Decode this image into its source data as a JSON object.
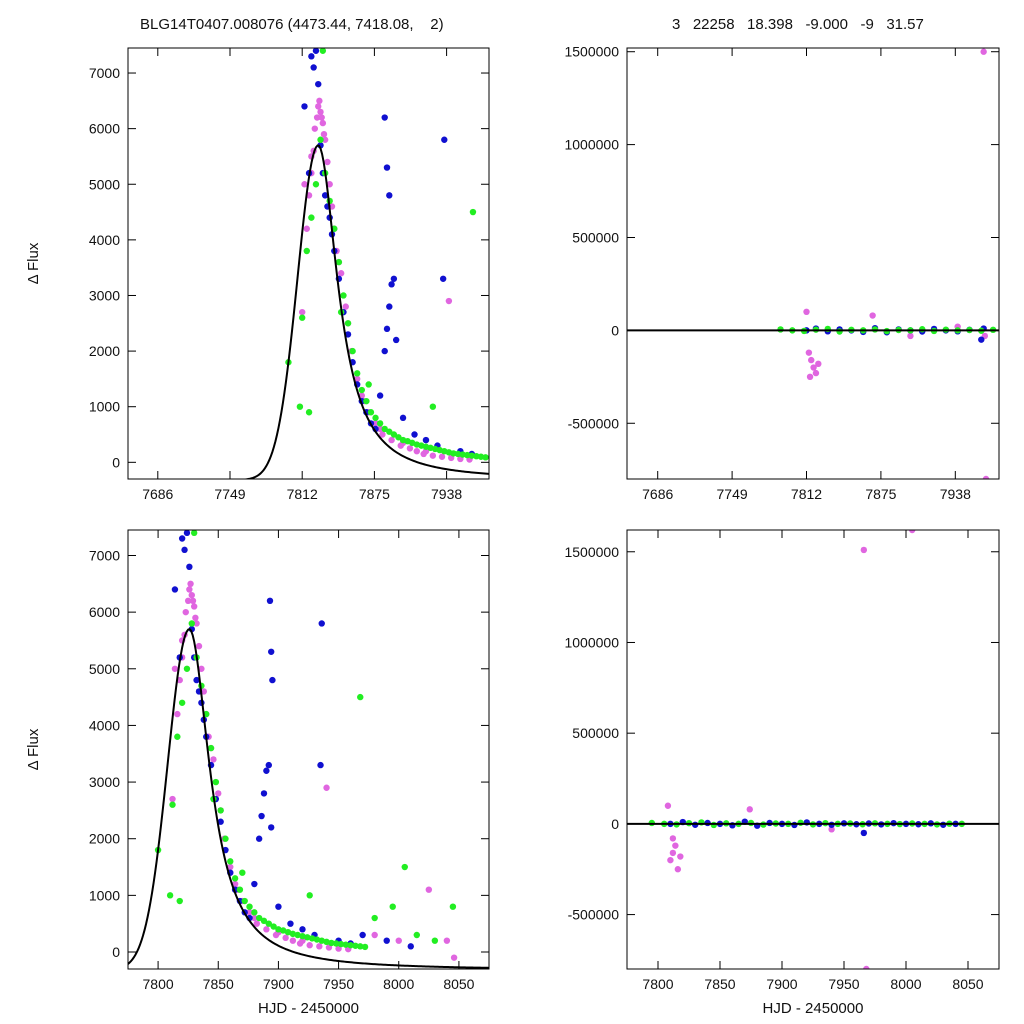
{
  "header": {
    "left_title": "BLG14T0407.008076 (4473.44, 7418.08,    2)",
    "right_title": "3   22258   18.398   -9.000   -9   31.57"
  },
  "colors": {
    "series_magenta": "#e066e0",
    "series_blue": "#1010d0",
    "series_green": "#22ee22",
    "model_line": "#000000",
    "axis": "#000000"
  },
  "chart_data": [
    {
      "id": "top-left",
      "type": "scatter",
      "xlabel": "",
      "ylabel": "Δ Flux",
      "xlim": [
        7660,
        7975
      ],
      "ylim": [
        -300,
        7450
      ],
      "xticks": [
        7686,
        7749,
        7812,
        7875,
        7938
      ],
      "yticks": [
        0,
        1000,
        2000,
        3000,
        4000,
        5000,
        6000,
        7000
      ],
      "model": {
        "type": "line",
        "t0": 7826,
        "peak": 5700,
        "tau_rise": 18,
        "tau_fall": 26,
        "baseline": -320
      },
      "series": [
        {
          "color_key": "series_magenta",
          "x": [
            7812,
            7816,
            7818,
            7820,
            7822,
            7823,
            7825,
            7826,
            7828,
            7830,
            7832,
            7834,
            7836,
            7838,
            7842,
            7846,
            7850,
            7855,
            7860,
            7864,
            7870,
            7876,
            7882,
            7890,
            7898,
            7906,
            7912,
            7918,
            7926,
            7934,
            7942,
            7950,
            7958,
            7814,
            7820,
            7827,
            7829,
            7831,
            7840,
            7844,
            7852,
            7866,
            7880,
            7900,
            7920,
            7940
          ],
          "y": [
            2700,
            4200,
            4800,
            5200,
            5600,
            6000,
            6200,
            6400,
            6300,
            6100,
            5800,
            5400,
            5000,
            4600,
            3800,
            3400,
            2800,
            2000,
            1500,
            1200,
            900,
            700,
            500,
            400,
            300,
            250,
            200,
            150,
            120,
            100,
            80,
            60,
            50,
            5000,
            5500,
            6500,
            6200,
            5900,
            4200,
            3600,
            2500,
            1100,
            600,
            350,
            200,
            2900
          ]
        },
        {
          "color_key": "series_blue",
          "x": [
            7814,
            7818,
            7820,
            7822,
            7824,
            7826,
            7828,
            7830,
            7832,
            7834,
            7836,
            7838,
            7840,
            7844,
            7848,
            7852,
            7856,
            7860,
            7864,
            7868,
            7872,
            7876,
            7880,
            7884,
            7886,
            7888,
            7890,
            7892,
            7894,
            7900,
            7910,
            7920,
            7930,
            7935,
            7936,
            7950,
            7960,
            7884,
            7886,
            7888
          ],
          "y": [
            6400,
            5200,
            7300,
            7100,
            7400,
            6800,
            5700,
            5200,
            4800,
            4600,
            4400,
            4100,
            3800,
            3300,
            2700,
            2300,
            1800,
            1400,
            1100,
            900,
            700,
            600,
            1200,
            2000,
            2400,
            2800,
            3200,
            3300,
            2200,
            800,
            500,
            400,
            300,
            3300,
            5800,
            200,
            150,
            6200,
            5300,
            4800
          ]
        },
        {
          "color_key": "series_green",
          "x": [
            7810,
            7812,
            7816,
            7820,
            7824,
            7828,
            7832,
            7836,
            7840,
            7844,
            7848,
            7852,
            7856,
            7860,
            7864,
            7868,
            7872,
            7876,
            7880,
            7884,
            7888,
            7892,
            7896,
            7900,
            7904,
            7908,
            7912,
            7916,
            7920,
            7924,
            7928,
            7932,
            7936,
            7940,
            7944,
            7948,
            7952,
            7956,
            7960,
            7964,
            7968,
            7972,
            7800,
            7818,
            7830,
            7846,
            7870,
            7926,
            7961
          ],
          "y": [
            1000,
            2600,
            3800,
            4400,
            5000,
            5800,
            5200,
            4700,
            4200,
            3600,
            3000,
            2500,
            2000,
            1600,
            1300,
            1100,
            900,
            800,
            700,
            600,
            550,
            500,
            450,
            400,
            380,
            350,
            320,
            300,
            280,
            260,
            240,
            220,
            200,
            180,
            160,
            150,
            140,
            130,
            120,
            110,
            100,
            90,
            1800,
            900,
            7400,
            2700,
            1400,
            1000,
            4500
          ]
        }
      ]
    },
    {
      "id": "top-right",
      "type": "scatter",
      "xlabel": "",
      "ylabel": "",
      "xlim": [
        7660,
        7975
      ],
      "ylim": [
        -800000,
        1520000
      ],
      "xticks": [
        7686,
        7749,
        7812,
        7875,
        7938
      ],
      "yticks": [
        -500000,
        0,
        500000,
        1000000,
        1500000
      ],
      "model": {
        "type": "flat",
        "value": 0
      },
      "series": [
        {
          "color_key": "series_magenta",
          "x": [
            7812,
            7814,
            7816,
            7818,
            7820,
            7822,
            7815,
            7868,
            7900,
            7940,
            7962,
            7964,
            7963
          ],
          "y": [
            100000,
            -120000,
            -160000,
            -200000,
            -230000,
            -180000,
            -250000,
            80000,
            -30000,
            20000,
            1500000,
            -800000,
            -30000
          ]
        },
        {
          "color_key": "series_blue",
          "x": [
            7812,
            7820,
            7830,
            7840,
            7850,
            7860,
            7870,
            7880,
            7890,
            7900,
            7910,
            7920,
            7930,
            7940,
            7950,
            7960,
            7962
          ],
          "y": [
            0,
            10000,
            -5000,
            5000,
            0,
            -8000,
            12000,
            -10000,
            5000,
            0,
            -6000,
            8000,
            0,
            -5000,
            3000,
            -50000,
            10000
          ]
        },
        {
          "color_key": "series_green",
          "x": [
            7790,
            7800,
            7810,
            7820,
            7830,
            7840,
            7850,
            7860,
            7870,
            7880,
            7890,
            7900,
            7910,
            7920,
            7930,
            7940,
            7950,
            7960,
            7970
          ],
          "y": [
            5000,
            0,
            -3000,
            4000,
            8000,
            -6000,
            3000,
            0,
            5000,
            -4000,
            2000,
            0,
            6000,
            -3000,
            4000,
            0,
            2000,
            -2000,
            3000
          ]
        }
      ]
    },
    {
      "id": "bottom-left",
      "type": "scatter",
      "xlabel": "HJD - 2450000",
      "ylabel": "Δ Flux",
      "xlim": [
        7775,
        8075
      ],
      "ylim": [
        -300,
        7450
      ],
      "xticks": [
        7800,
        7850,
        7900,
        7950,
        8000,
        8050
      ],
      "yticks": [
        0,
        1000,
        2000,
        3000,
        4000,
        5000,
        6000,
        7000
      ],
      "model": {
        "type": "line",
        "t0": 7826,
        "peak": 5700,
        "tau_rise": 18,
        "tau_fall": 26,
        "baseline": -320
      },
      "series": [
        {
          "color_key": "series_magenta",
          "x": [
            7812,
            7816,
            7818,
            7820,
            7822,
            7823,
            7825,
            7826,
            7828,
            7830,
            7832,
            7834,
            7836,
            7838,
            7842,
            7846,
            7850,
            7855,
            7860,
            7864,
            7870,
            7876,
            7882,
            7890,
            7898,
            7906,
            7912,
            7918,
            7926,
            7934,
            7942,
            7950,
            7958,
            7814,
            7820,
            7827,
            7829,
            7831,
            7840,
            7844,
            7852,
            7866,
            7880,
            7900,
            7920,
            7940,
            7980,
            8000,
            8025,
            8040,
            8046
          ],
          "y": [
            2700,
            4200,
            4800,
            5200,
            5600,
            6000,
            6200,
            6400,
            6300,
            6100,
            5800,
            5400,
            5000,
            4600,
            3800,
            3400,
            2800,
            2000,
            1500,
            1200,
            900,
            700,
            500,
            400,
            300,
            250,
            200,
            150,
            120,
            100,
            80,
            60,
            50,
            5000,
            5500,
            6500,
            6200,
            5900,
            4200,
            3600,
            2500,
            1100,
            600,
            350,
            200,
            2900,
            300,
            200,
            1100,
            200,
            -100
          ]
        },
        {
          "color_key": "series_blue",
          "x": [
            7814,
            7818,
            7820,
            7822,
            7824,
            7826,
            7828,
            7830,
            7832,
            7834,
            7836,
            7838,
            7840,
            7844,
            7848,
            7852,
            7856,
            7860,
            7864,
            7868,
            7872,
            7876,
            7880,
            7884,
            7886,
            7888,
            7890,
            7892,
            7894,
            7900,
            7910,
            7920,
            7930,
            7935,
            7936,
            7950,
            7960,
            7893,
            7894,
            7895,
            7970,
            7990,
            8010
          ],
          "y": [
            6400,
            5200,
            7300,
            7100,
            7400,
            6800,
            5700,
            5200,
            4800,
            4600,
            4400,
            4100,
            3800,
            3300,
            2700,
            2300,
            1800,
            1400,
            1100,
            900,
            700,
            600,
            1200,
            2000,
            2400,
            2800,
            3200,
            3300,
            2200,
            800,
            500,
            400,
            300,
            3300,
            5800,
            200,
            150,
            6200,
            5300,
            4800,
            300,
            200,
            100
          ]
        },
        {
          "color_key": "series_green",
          "x": [
            7810,
            7812,
            7816,
            7820,
            7824,
            7828,
            7832,
            7836,
            7840,
            7844,
            7848,
            7852,
            7856,
            7860,
            7864,
            7868,
            7872,
            7876,
            7880,
            7884,
            7888,
            7892,
            7896,
            7900,
            7904,
            7908,
            7912,
            7916,
            7920,
            7924,
            7928,
            7932,
            7936,
            7940,
            7944,
            7948,
            7952,
            7956,
            7960,
            7964,
            7968,
            7972,
            7800,
            7818,
            7830,
            7846,
            7870,
            7926,
            7968,
            7980,
            7995,
            8005,
            8015,
            8030,
            8045
          ],
          "y": [
            1000,
            2600,
            3800,
            4400,
            5000,
            5800,
            5200,
            4700,
            4200,
            3600,
            3000,
            2500,
            2000,
            1600,
            1300,
            1100,
            900,
            800,
            700,
            600,
            550,
            500,
            450,
            400,
            380,
            350,
            320,
            300,
            280,
            260,
            240,
            220,
            200,
            180,
            160,
            150,
            140,
            130,
            120,
            110,
            100,
            90,
            1800,
            900,
            7400,
            2700,
            1400,
            1000,
            4500,
            600,
            800,
            1500,
            300,
            200,
            800
          ]
        }
      ]
    },
    {
      "id": "bottom-right",
      "type": "scatter",
      "xlabel": "HJD - 2450000",
      "ylabel": "",
      "xlim": [
        7775,
        8075
      ],
      "ylim": [
        -800000,
        1620000
      ],
      "xticks": [
        7800,
        7850,
        7900,
        7950,
        8000,
        8050
      ],
      "yticks": [
        -500000,
        0,
        500000,
        1000000,
        1500000
      ],
      "model": {
        "type": "flat",
        "value": 0
      },
      "series": [
        {
          "color_key": "series_magenta",
          "x": [
            7808,
            7810,
            7812,
            7814,
            7816,
            7818,
            7812,
            7874,
            7940,
            7966,
            7968,
            8005
          ],
          "y": [
            100000,
            -200000,
            -160000,
            -120000,
            -250000,
            -180000,
            -80000,
            80000,
            -30000,
            1510000,
            -800000,
            1620000
          ]
        },
        {
          "color_key": "series_blue",
          "x": [
            7810,
            7820,
            7830,
            7840,
            7850,
            7860,
            7870,
            7880,
            7890,
            7900,
            7910,
            7920,
            7930,
            7940,
            7950,
            7960,
            7966,
            7970,
            7980,
            7990,
            8000,
            8010,
            8020,
            8030,
            8040
          ],
          "y": [
            0,
            10000,
            -5000,
            5000,
            0,
            -8000,
            12000,
            -10000,
            5000,
            0,
            -6000,
            8000,
            0,
            -5000,
            3000,
            -2000,
            -50000,
            2000,
            -3000,
            4000,
            0,
            -2000,
            3000,
            -5000,
            0
          ]
        },
        {
          "color_key": "series_green",
          "x": [
            7795,
            7805,
            7815,
            7825,
            7835,
            7845,
            7855,
            7865,
            7875,
            7885,
            7895,
            7905,
            7915,
            7925,
            7935,
            7945,
            7955,
            7965,
            7975,
            7985,
            7995,
            8005,
            8015,
            8025,
            8035,
            8045
          ],
          "y": [
            5000,
            0,
            -3000,
            4000,
            8000,
            -6000,
            3000,
            0,
            5000,
            -4000,
            2000,
            0,
            6000,
            -3000,
            4000,
            0,
            2000,
            -2000,
            3000,
            0,
            -1000,
            2000,
            0,
            -3000,
            1000,
            0
          ]
        }
      ]
    }
  ]
}
